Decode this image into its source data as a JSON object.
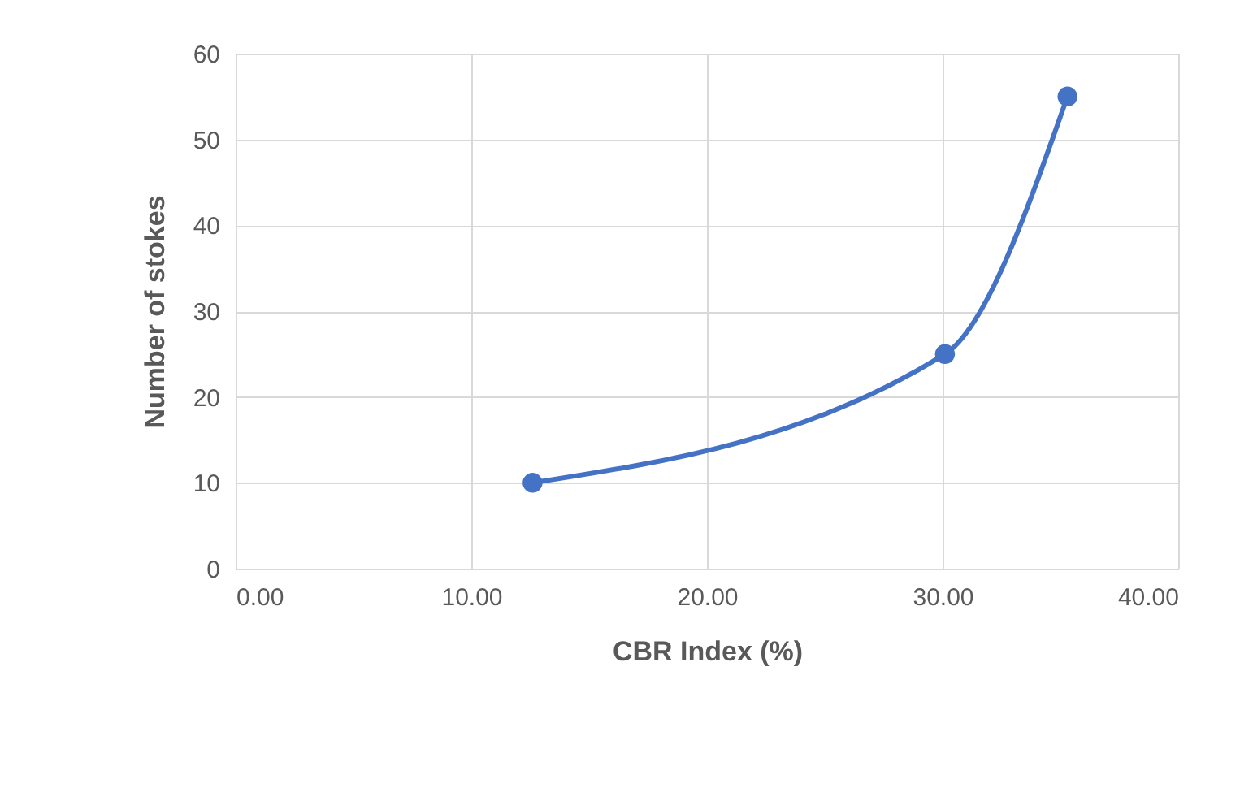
{
  "chart_data": {
    "type": "line",
    "xlabel": "CBR Index (%)",
    "ylabel": "Number of stokes",
    "x": [
      12.6,
      30.1,
      35.3
    ],
    "series": [
      {
        "color": "#4472c4",
        "values": [
          10,
          25,
          55
        ]
      }
    ],
    "xlim": [
      0,
      40
    ],
    "xticks": [
      {
        "value": 0,
        "label": "0.00"
      },
      {
        "value": 10,
        "label": "10.00"
      },
      {
        "value": 20,
        "label": "20.00"
      },
      {
        "value": 30,
        "label": "30.00"
      },
      {
        "value": 40,
        "label": "40.00"
      }
    ],
    "ylim": [
      0,
      60
    ],
    "yticks": [
      0,
      10,
      20,
      30,
      40,
      50,
      60
    ],
    "grid": true,
    "marker": "circle",
    "line_style": "solid"
  }
}
